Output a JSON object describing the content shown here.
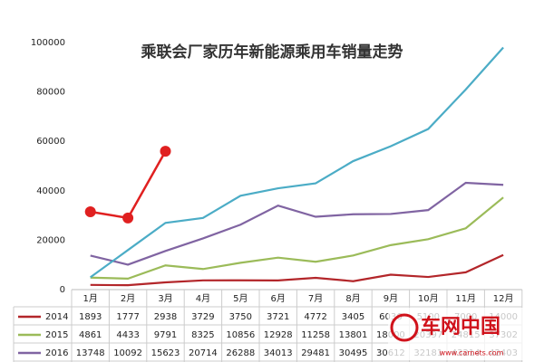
{
  "chart_data": {
    "type": "line",
    "title": "乘联会厂家历年新能源乘用车销量走势",
    "categories": [
      "1月",
      "2月",
      "3月",
      "4月",
      "5月",
      "6月",
      "7月",
      "8月",
      "9月",
      "10月",
      "11月",
      "12月"
    ],
    "series": [
      {
        "name": "2014",
        "color": "#b3262a",
        "values": [
          1893,
          1777,
          2938,
          3729,
          3750,
          3721,
          4772,
          3405,
          6036,
          5100,
          7000,
          14000
        ]
      },
      {
        "name": "2015",
        "color": "#9bbb59",
        "values": [
          4861,
          4433,
          9791,
          8325,
          10856,
          12928,
          11258,
          13801,
          18000,
          20397,
          24815,
          37302
        ]
      },
      {
        "name": "2016",
        "color": "#8064a2",
        "values": [
          13748,
          10092,
          15623,
          20714,
          26288,
          34013,
          29481,
          30495,
          30612,
          32181,
          43214,
          42403
        ]
      },
      {
        "color": "#4bacc6",
        "values": [
          5000,
          16000,
          27000,
          29000,
          38000,
          41000,
          43000,
          52000,
          58000,
          65000,
          81000,
          98000
        ]
      },
      {
        "color": "#e02020",
        "markers": true,
        "values": [
          31500,
          29000,
          56000,
          null,
          null,
          null,
          null,
          null,
          null,
          null,
          null,
          null
        ]
      }
    ],
    "ylim": [
      0,
      100000
    ],
    "yticks": [
      0,
      20000,
      40000,
      60000,
      80000,
      100000
    ],
    "grid": false,
    "watermark": {
      "text": "车网中国",
      "url": "www.carnets.com"
    }
  }
}
